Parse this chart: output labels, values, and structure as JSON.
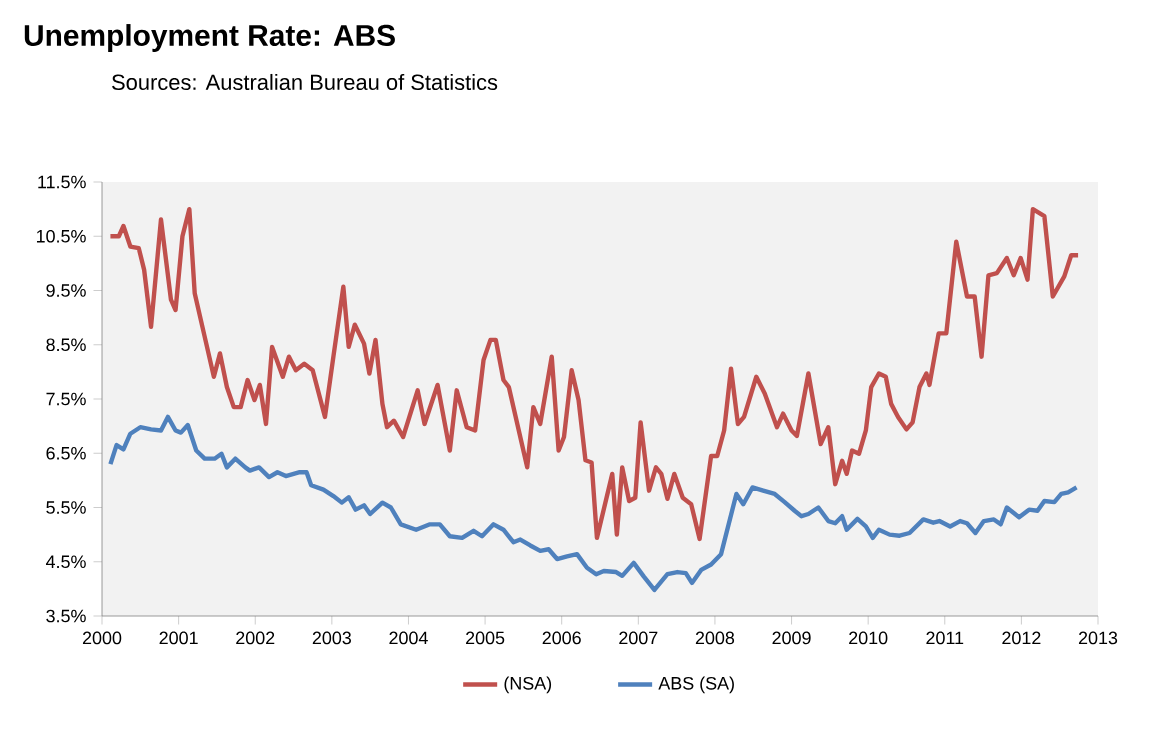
{
  "chart_data": {
    "type": "line",
    "title": "Unemployment Rate: ABS",
    "subtitle": "Sources: Australian Bureau of Statistics",
    "xlim": [
      2000,
      2013
    ],
    "xticks": [
      2000,
      2001,
      2002,
      2003,
      2004,
      2005,
      2006,
      2007,
      2008,
      2009,
      2010,
      2011,
      2012,
      2013
    ],
    "ylim": [
      3.5,
      11.5
    ],
    "yticks": [
      {
        "value": 3.5,
        "label": "3.5%"
      },
      {
        "value": 4.5,
        "label": "4.5%"
      },
      {
        "value": 5.5,
        "label": "5.5%"
      },
      {
        "value": 6.5,
        "label": "6.5%"
      },
      {
        "value": 7.5,
        "label": "7.5%"
      },
      {
        "value": 8.5,
        "label": "8.5%"
      },
      {
        "value": 9.5,
        "label": "9.5%"
      },
      {
        "value": 10.5,
        "label": "10.5%"
      },
      {
        "value": 11.5,
        "label": "11.5%"
      }
    ],
    "legend": "bottom",
    "grid": false,
    "series": [
      {
        "name": "(NSA)",
        "color": "#c0504d",
        "x": [
          2000.11,
          2000.22,
          2000.28,
          2000.37,
          2000.48,
          2000.55,
          2000.64,
          2000.77,
          2000.9,
          2000.96,
          2001.05,
          2001.14,
          2001.21,
          2001.34,
          2001.46,
          2001.54,
          2001.63,
          2001.72,
          2001.81,
          2001.9,
          2001.99,
          2002.06,
          2002.14,
          2002.22,
          2002.36,
          2002.44,
          2002.53,
          2002.64,
          2002.75,
          2002.91,
          2003.02,
          2003.15,
          2003.22,
          2003.3,
          2003.42,
          2003.49,
          2003.57,
          2003.66,
          2003.72,
          2003.81,
          2003.93,
          2004.12,
          2004.21,
          2004.38,
          2004.54,
          2004.63,
          2004.76,
          2004.87,
          2004.98,
          2005.07,
          2005.14,
          2005.24,
          2005.31,
          2005.55,
          2005.63,
          2005.72,
          2005.87,
          2005.96,
          2006.03,
          2006.13,
          2006.22,
          2006.31,
          2006.39,
          2006.46,
          2006.66,
          2006.72,
          2006.79,
          2006.88,
          2006.96,
          2007.03,
          2007.14,
          2007.23,
          2007.3,
          2007.38,
          2007.47,
          2007.58,
          2007.69,
          2007.8,
          2007.95,
          2008.03,
          2008.12,
          2008.21,
          2008.3,
          2008.38,
          2008.54,
          2008.65,
          2008.81,
          2008.89,
          2009.0,
          2009.07,
          2009.22,
          2009.38,
          2009.48,
          2009.57,
          2009.66,
          2009.72,
          2009.79,
          2009.88,
          2009.97,
          2010.04,
          2010.14,
          2010.23,
          2010.3,
          2010.39,
          2010.5,
          2010.58,
          2010.67,
          2010.76,
          2010.8,
          2010.92,
          2011.02,
          2011.15,
          2011.29,
          2011.39,
          2011.48,
          2011.57,
          2011.68,
          2011.81,
          2011.9,
          2011.99,
          2012.08,
          2012.15,
          2012.3,
          2012.41,
          2012.56,
          2012.65,
          2012.74
        ],
        "values": [
          10.5,
          10.5,
          10.69,
          10.31,
          10.28,
          9.88,
          8.83,
          10.81,
          9.33,
          9.14,
          10.5,
          11.0,
          9.45,
          8.65,
          7.91,
          8.34,
          7.72,
          7.35,
          7.35,
          7.85,
          7.48,
          7.76,
          7.04,
          8.46,
          7.91,
          8.28,
          8.03,
          8.15,
          8.03,
          7.17,
          8.28,
          9.57,
          8.46,
          8.87,
          8.52,
          7.97,
          8.59,
          7.41,
          6.98,
          7.1,
          6.8,
          7.66,
          7.04,
          7.76,
          6.55,
          7.66,
          6.98,
          6.92,
          8.22,
          8.59,
          8.59,
          7.85,
          7.72,
          6.24,
          7.35,
          7.04,
          8.28,
          6.55,
          6.8,
          8.03,
          7.48,
          6.37,
          6.33,
          4.94,
          6.12,
          5.0,
          6.24,
          5.62,
          5.68,
          7.07,
          5.81,
          6.24,
          6.12,
          5.66,
          6.12,
          5.68,
          5.56,
          4.92,
          6.45,
          6.45,
          6.92,
          8.06,
          7.04,
          7.17,
          7.91,
          7.6,
          6.98,
          7.23,
          6.92,
          6.82,
          7.97,
          6.67,
          6.98,
          5.93,
          6.36,
          6.12,
          6.55,
          6.49,
          6.92,
          7.72,
          7.97,
          7.91,
          7.41,
          7.17,
          6.94,
          7.07,
          7.72,
          7.97,
          7.76,
          8.71,
          8.71,
          10.4,
          9.39,
          9.39,
          8.28,
          9.78,
          9.82,
          10.1,
          9.78,
          10.1,
          9.7,
          11.0,
          10.87,
          9.39,
          9.76,
          10.15,
          10.15
        ]
      },
      {
        "name": "ABS (SA)",
        "color": "#4f81bd",
        "x": [
          2000.11,
          2000.19,
          2000.28,
          2000.37,
          2000.5,
          2000.64,
          2000.77,
          2000.86,
          2000.96,
          2001.03,
          2001.12,
          2001.23,
          2001.34,
          2001.47,
          2001.56,
          2001.63,
          2001.74,
          2001.87,
          2001.93,
          2002.05,
          2002.18,
          2002.29,
          2002.4,
          2002.58,
          2002.67,
          2002.73,
          2002.89,
          2003.02,
          2003.13,
          2003.22,
          2003.31,
          2003.42,
          2003.5,
          2003.66,
          2003.77,
          2003.9,
          2004.1,
          2004.28,
          2004.41,
          2004.54,
          2004.7,
          2004.85,
          2004.96,
          2005.11,
          2005.24,
          2005.37,
          2005.46,
          2005.59,
          2005.72,
          2005.83,
          2005.94,
          2006.07,
          2006.2,
          2006.33,
          2006.45,
          2006.55,
          2006.71,
          2006.79,
          2006.94,
          2007.07,
          2007.21,
          2007.38,
          2007.51,
          2007.62,
          2007.7,
          2007.82,
          2007.95,
          2008.08,
          2008.28,
          2008.37,
          2008.49,
          2008.63,
          2008.78,
          2008.91,
          2009.04,
          2009.13,
          2009.22,
          2009.35,
          2009.48,
          2009.57,
          2009.66,
          2009.72,
          2009.86,
          2009.97,
          2010.06,
          2010.14,
          2010.28,
          2010.41,
          2010.54,
          2010.72,
          2010.85,
          2010.93,
          2011.07,
          2011.2,
          2011.29,
          2011.4,
          2011.51,
          2011.64,
          2011.73,
          2011.81,
          2011.97,
          2012.1,
          2012.21,
          2012.3,
          2012.43,
          2012.52,
          2012.61,
          2012.72
        ],
        "values": [
          6.3,
          6.65,
          6.57,
          6.86,
          6.98,
          6.94,
          6.92,
          7.17,
          6.92,
          6.88,
          7.02,
          6.55,
          6.4,
          6.4,
          6.49,
          6.24,
          6.4,
          6.24,
          6.18,
          6.24,
          6.06,
          6.15,
          6.08,
          6.15,
          6.15,
          5.91,
          5.83,
          5.71,
          5.59,
          5.69,
          5.46,
          5.54,
          5.38,
          5.59,
          5.5,
          5.19,
          5.09,
          5.19,
          5.19,
          4.97,
          4.94,
          5.07,
          4.97,
          5.19,
          5.09,
          4.86,
          4.91,
          4.8,
          4.7,
          4.73,
          4.55,
          4.6,
          4.64,
          4.39,
          4.27,
          4.33,
          4.31,
          4.24,
          4.48,
          4.23,
          3.98,
          4.27,
          4.31,
          4.29,
          4.11,
          4.35,
          4.45,
          4.64,
          5.75,
          5.56,
          5.87,
          5.81,
          5.75,
          5.6,
          5.44,
          5.34,
          5.38,
          5.5,
          5.25,
          5.21,
          5.34,
          5.09,
          5.29,
          5.15,
          4.94,
          5.09,
          5.0,
          4.98,
          5.03,
          5.28,
          5.22,
          5.25,
          5.15,
          5.25,
          5.21,
          5.03,
          5.25,
          5.28,
          5.19,
          5.5,
          5.32,
          5.46,
          5.44,
          5.62,
          5.6,
          5.75,
          5.78,
          5.87
        ]
      }
    ]
  }
}
